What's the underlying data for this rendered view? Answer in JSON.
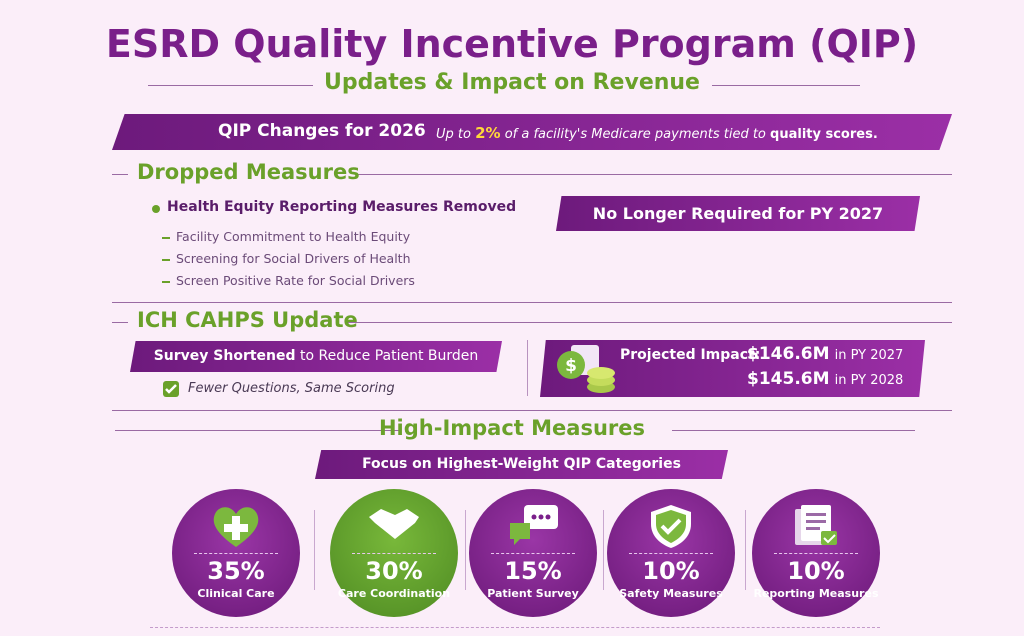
{
  "header": {
    "title": "ESRD Quality Incentive Program (QIP)",
    "subtitle": "Updates & Impact on Revenue"
  },
  "banner": {
    "title": "QIP Changes for 2026",
    "text": [
      "Up to",
      "2%",
      "of a facility's Medicare payments tied to",
      "quality scores."
    ]
  },
  "dropped": {
    "heading": "Dropped Measures",
    "item": "Health Equity Reporting Measures Removed",
    "subitems": [
      "Facility Commitment to Health Equity",
      "Screening for Social Drivers of Health",
      "Screen Positive Rate for Social Drivers"
    ],
    "badge": "No Longer Required for PY 2027"
  },
  "cahps": {
    "heading": "ICH CAHPS Update",
    "banner": [
      "Survey Shortened",
      "to Reduce Patient Burden"
    ],
    "check": "Fewer Questions, Same Scoring",
    "impact": {
      "label": "Projected Impact:",
      "rows": [
        {
          "amount": "$146.6M",
          "period": "in PY 2027"
        },
        {
          "amount": "$145.6M",
          "period": "in PY 2028"
        }
      ]
    }
  },
  "high_impact": {
    "heading": "High-Impact Measures",
    "banner": "Focus on Highest-Weight QIP Categories",
    "items": [
      {
        "percent": "35%",
        "label": "Clinical Care"
      },
      {
        "percent": "30%",
        "label": "Care Coordination"
      },
      {
        "percent": "15%",
        "label": "Patient Survey"
      },
      {
        "percent": "10%",
        "label": "Safety Measures"
      },
      {
        "percent": "10%",
        "label": "Reporting Measures"
      }
    ]
  }
}
